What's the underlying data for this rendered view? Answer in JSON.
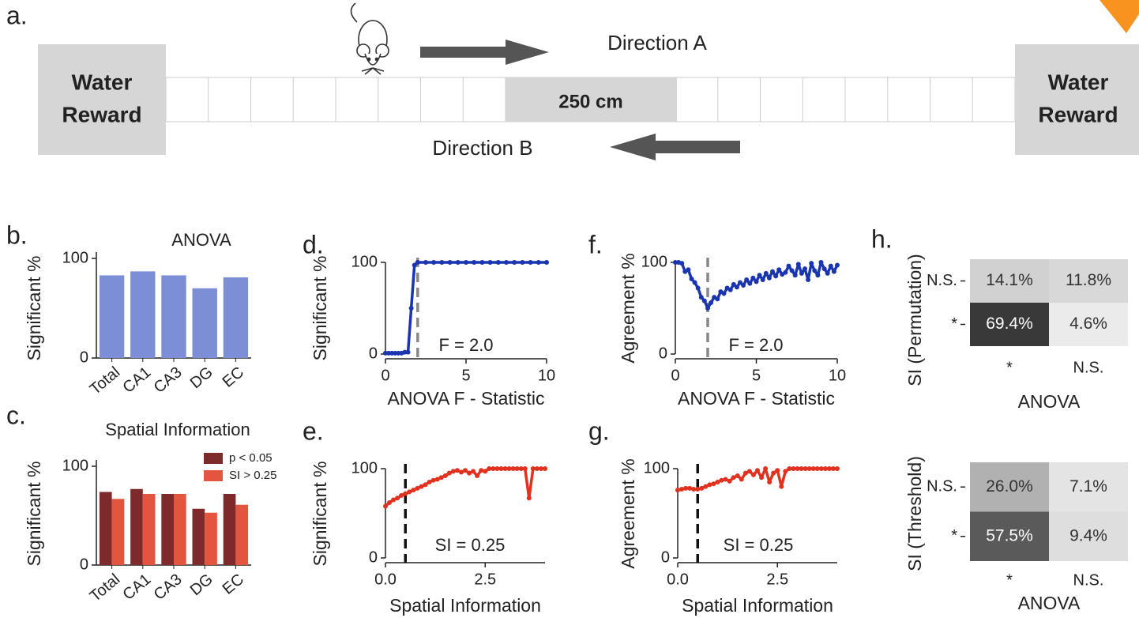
{
  "panel_a": {
    "label": "a.",
    "left_box": [
      "Water",
      "Reward"
    ],
    "right_box": [
      "Water",
      "Reward"
    ],
    "track_label": "250 cm",
    "direction_a": "Direction A",
    "direction_b": "Direction B"
  },
  "chart_data": [
    {
      "type": "bar",
      "panel_label": "b.",
      "title": "ANOVA",
      "ylabel": "Significant %",
      "categories": [
        "Total",
        "CA1",
        "CA3",
        "DG",
        "EC"
      ],
      "values": [
        83,
        87,
        83,
        70,
        81
      ],
      "color": "#7b8ed6",
      "ylim": [
        0,
        100
      ],
      "yticks": [
        0,
        100
      ]
    },
    {
      "type": "bar",
      "panel_label": "c.",
      "title": "Spatial Information",
      "ylabel": "Significant %",
      "categories": [
        "Total",
        "CA1",
        "CA3",
        "DG",
        "EC"
      ],
      "series": [
        {
          "name": "p < 0.05",
          "color": "#7f2a2a",
          "values": [
            74,
            77,
            72,
            57,
            72
          ]
        },
        {
          "name": "SI > 0.25",
          "color": "#e4553f",
          "values": [
            67,
            72,
            72,
            53,
            61
          ]
        }
      ],
      "legend": "upper right",
      "ylim": [
        0,
        100
      ],
      "yticks": [
        0,
        100
      ]
    },
    {
      "type": "line",
      "panel_label": "d.",
      "ylabel": "Significant %",
      "xlabel": "ANOVA F - Statistic",
      "annotation": "F = 2.0",
      "x": [
        0,
        0.2,
        0.4,
        0.6,
        0.8,
        1,
        1.2,
        1.4,
        1.6,
        1.8,
        2,
        2.5,
        3,
        3.5,
        4,
        4.5,
        5,
        5.5,
        6,
        6.5,
        7,
        7.5,
        8,
        8.5,
        9,
        9.5,
        10
      ],
      "series": [
        {
          "color": "#1a35b0",
          "values": [
            1,
            1,
            1,
            1,
            1,
            1,
            2,
            2,
            50,
            97,
            100,
            100,
            100,
            100,
            100,
            100,
            100,
            100,
            100,
            100,
            100,
            100,
            100,
            100,
            100,
            100,
            100
          ]
        }
      ],
      "vline": {
        "x": 2,
        "color": "#888888"
      },
      "xlim": [
        0,
        10
      ],
      "xticks": [
        0,
        5,
        10
      ],
      "ylim": [
        0,
        100
      ],
      "yticks": [
        0,
        100
      ]
    },
    {
      "type": "line",
      "panel_label": "e.",
      "ylabel": "Significant %",
      "xlabel": "Spatial Information",
      "annotation": "SI = 0.25",
      "x": [
        0,
        0.1,
        0.2,
        0.3,
        0.4,
        0.5,
        0.6,
        0.7,
        0.8,
        0.9,
        1,
        1.1,
        1.2,
        1.3,
        1.4,
        1.5,
        1.6,
        1.7,
        1.8,
        1.9,
        2,
        2.1,
        2.2,
        2.3,
        2.4,
        2.5,
        2.6,
        2.7,
        2.8,
        2.9,
        3,
        3.1,
        3.2,
        3.3,
        3.4,
        3.5,
        3.6,
        3.7,
        3.8,
        3.9,
        4
      ],
      "series": [
        {
          "color": "#e0321f",
          "values": [
            58,
            62,
            65,
            67,
            70,
            72,
            74,
            76,
            78,
            80,
            82,
            85,
            87,
            88,
            90,
            92,
            95,
            97,
            98,
            96,
            98,
            95,
            97,
            92,
            98,
            97,
            100,
            100,
            100,
            100,
            100,
            100,
            100,
            100,
            100,
            100,
            67,
            100,
            100,
            100,
            100
          ]
        }
      ],
      "vline": {
        "x": 0.5,
        "color": "#111111"
      },
      "xlim": [
        0,
        4
      ],
      "xticks": [
        {
          "value": 0,
          "label": "0.0"
        },
        2.5
      ],
      "ylim": [
        0,
        100
      ],
      "yticks": [
        0,
        100
      ]
    },
    {
      "type": "line",
      "panel_label": "f.",
      "ylabel": "Agreement %",
      "xlabel": "ANOVA F - Statistic",
      "annotation": "F = 2.0",
      "x": [
        0,
        0.2,
        0.4,
        0.6,
        0.8,
        1,
        1.2,
        1.4,
        1.6,
        1.8,
        2,
        2.2,
        2.4,
        2.6,
        2.8,
        3,
        3.2,
        3.4,
        3.6,
        3.8,
        4,
        4.2,
        4.4,
        4.6,
        4.8,
        5,
        5.2,
        5.4,
        5.6,
        5.8,
        6,
        6.2,
        6.4,
        6.6,
        6.8,
        7,
        7.2,
        7.4,
        7.6,
        7.8,
        8,
        8.2,
        8.4,
        8.6,
        8.8,
        9,
        9.2,
        9.4,
        9.6,
        9.8,
        10
      ],
      "series": [
        {
          "color": "#1a35b0",
          "values": [
            100,
            100,
            99,
            90,
            92,
            82,
            78,
            72,
            62,
            58,
            50,
            56,
            62,
            60,
            68,
            66,
            72,
            70,
            76,
            73,
            78,
            75,
            81,
            77,
            83,
            79,
            86,
            81,
            88,
            83,
            90,
            85,
            92,
            87,
            89,
            96,
            91,
            86,
            98,
            88,
            93,
            81,
            99,
            91,
            86,
            100,
            93,
            88,
            96,
            90,
            97
          ]
        }
      ],
      "vline": {
        "x": 2,
        "color": "#888888"
      },
      "xlim": [
        0,
        10
      ],
      "xticks": [
        0,
        5,
        10
      ],
      "ylim": [
        0,
        100
      ],
      "yticks": [
        0,
        100
      ]
    },
    {
      "type": "line",
      "panel_label": "g.",
      "ylabel": "Agreement %",
      "xlabel": "Spatial Information",
      "annotation": "SI = 0.25",
      "x": [
        0,
        0.1,
        0.2,
        0.3,
        0.4,
        0.5,
        0.6,
        0.7,
        0.8,
        0.9,
        1,
        1.1,
        1.2,
        1.3,
        1.4,
        1.5,
        1.6,
        1.7,
        1.8,
        1.9,
        2,
        2.1,
        2.2,
        2.3,
        2.4,
        2.5,
        2.6,
        2.7,
        2.8,
        2.9,
        3,
        3.1,
        3.2,
        3.3,
        3.4,
        3.5,
        3.6,
        3.7,
        3.8,
        3.9,
        4
      ],
      "series": [
        {
          "color": "#e0321f",
          "values": [
            76,
            77,
            78,
            78,
            77,
            77,
            78,
            80,
            82,
            83,
            85,
            87,
            88,
            86,
            90,
            92,
            88,
            95,
            97,
            93,
            98,
            90,
            100,
            85,
            95,
            98,
            80,
            97,
            100,
            100,
            100,
            100,
            100,
            100,
            100,
            100,
            100,
            100,
            100,
            100,
            100
          ]
        }
      ],
      "vline": {
        "x": 0.5,
        "color": "#111111"
      },
      "xlim": [
        0,
        4
      ],
      "xticks": [
        {
          "value": 0,
          "label": "0.0"
        },
        2.5
      ],
      "ylim": [
        0,
        100
      ],
      "yticks": [
        0,
        100
      ]
    },
    {
      "type": "heatmap",
      "panel_label": "h.",
      "ylabel": "SI (Permutation)",
      "xlabel": "ANOVA",
      "rows": [
        "N.S.",
        "*"
      ],
      "columns": [
        "*",
        "N.S."
      ],
      "values": [
        [
          14.1,
          11.8
        ],
        [
          69.4,
          4.6
        ]
      ],
      "value_labels": [
        [
          "14.1%",
          "11.8%"
        ],
        [
          "69.4%",
          "4.6%"
        ]
      ]
    },
    {
      "type": "heatmap",
      "ylabel": "SI (Threshold)",
      "xlabel": "ANOVA",
      "rows": [
        "N.S.",
        "*"
      ],
      "columns": [
        "*",
        "N.S."
      ],
      "values": [
        [
          26.0,
          7.1
        ],
        [
          57.5,
          9.4
        ]
      ],
      "value_labels": [
        [
          "26.0%",
          "7.1%"
        ],
        [
          "57.5%",
          "9.4%"
        ]
      ]
    }
  ]
}
